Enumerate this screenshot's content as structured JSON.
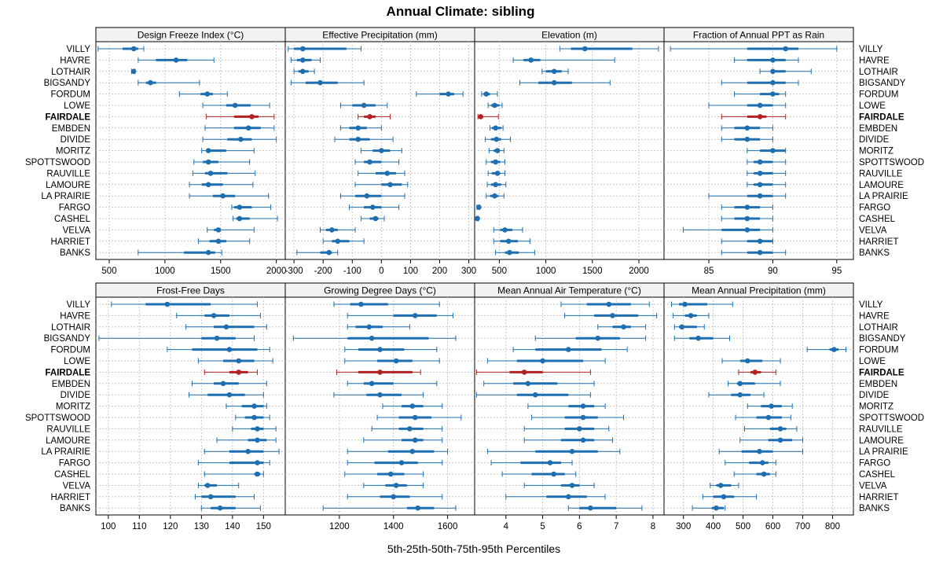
{
  "title": "Annual Climate: sibling",
  "xlabel": "5th-25th-50th-75th-95th Percentiles",
  "highlight_site": "FAIRDALE",
  "colors": {
    "normal": "#1f6fb0",
    "highlight": "#b22222",
    "strip_bg": "#f2f2f2",
    "grid": "#c8c8c8"
  },
  "sites": [
    "VILLY",
    "HAVRE",
    "LOTHAIR",
    "BIGSANDY",
    "FORDUM",
    "LOWE",
    "FAIRDALE",
    "EMBDEN",
    "DIVIDE",
    "MORITZ",
    "SPOTTSWOOD",
    "RAUVILLE",
    "LAMOURE",
    "LA PRAIRIE",
    "FARGO",
    "CASHEL",
    "VELVA",
    "HARRIET",
    "BANKS"
  ],
  "chart_data": [
    {
      "type": "percentile-dot",
      "title": "Design Freeze Index (°C)",
      "xlim": [
        380,
        2080
      ],
      "ticks": [
        500,
        1000,
        1500,
        2000
      ],
      "tick_labels": [
        "500",
        "1000",
        "1500",
        "2000"
      ],
      "series": [
        [
          400,
          620,
          720,
          760,
          810
        ],
        [
          760,
          920,
          1100,
          1200,
          1440
        ],
        [
          700,
          710,
          720,
          725,
          730
        ],
        [
          760,
          830,
          870,
          920,
          1310
        ],
        [
          1130,
          1320,
          1380,
          1430,
          1560
        ],
        [
          1340,
          1550,
          1630,
          1770,
          1940
        ],
        [
          1370,
          1620,
          1780,
          1840,
          1980
        ],
        [
          1360,
          1620,
          1750,
          1860,
          1980
        ],
        [
          1340,
          1560,
          1680,
          1780,
          2000
        ],
        [
          1330,
          1370,
          1390,
          1550,
          1800
        ],
        [
          1260,
          1340,
          1390,
          1480,
          1760
        ],
        [
          1250,
          1360,
          1410,
          1560,
          1810
        ],
        [
          1220,
          1330,
          1390,
          1520,
          1790
        ],
        [
          1220,
          1430,
          1520,
          1630,
          1930
        ],
        [
          1600,
          1620,
          1670,
          1780,
          1950
        ],
        [
          1610,
          1640,
          1670,
          1760,
          2010
        ],
        [
          1380,
          1440,
          1480,
          1500,
          1800
        ],
        [
          1300,
          1400,
          1480,
          1550,
          1760
        ],
        [
          760,
          1170,
          1390,
          1450,
          1510
        ]
      ]
    },
    {
      "type": "percentile-dot",
      "title": "Effective Precipitation (mm)",
      "xlim": [
        -330,
        320
      ],
      "ticks": [
        -300,
        -200,
        -100,
        0,
        100,
        200,
        300
      ],
      "tick_labels": [
        "-300",
        "-200",
        "-100",
        "0",
        "100",
        "200",
        "300"
      ],
      "series": [
        [
          -320,
          -300,
          -270,
          -120,
          -70
        ],
        [
          -310,
          -290,
          -270,
          -240,
          -210
        ],
        [
          -300,
          -285,
          -270,
          -250,
          -230
        ],
        [
          -310,
          -260,
          -210,
          -150,
          -60
        ],
        [
          120,
          200,
          230,
          250,
          280
        ],
        [
          -140,
          -100,
          -60,
          -20,
          20
        ],
        [
          -80,
          -60,
          -40,
          -20,
          30
        ],
        [
          -140,
          -110,
          -80,
          -50,
          0
        ],
        [
          -160,
          -110,
          -80,
          -40,
          40
        ],
        [
          -70,
          -30,
          0,
          30,
          70
        ],
        [
          -90,
          -60,
          -40,
          0,
          60
        ],
        [
          -80,
          -20,
          20,
          50,
          80
        ],
        [
          -90,
          0,
          30,
          70,
          90
        ],
        [
          -140,
          -90,
          -50,
          0,
          80
        ],
        [
          -110,
          -60,
          -30,
          0,
          60
        ],
        [
          -70,
          -40,
          -20,
          -10,
          10
        ],
        [
          -210,
          -190,
          -170,
          -150,
          -90
        ],
        [
          -200,
          -170,
          -150,
          -110,
          -60
        ],
        [
          -290,
          -210,
          -180,
          -170,
          -150
        ]
      ]
    },
    {
      "type": "percentile-dot",
      "title": "Elevation (m)",
      "xlim": [
        235,
        2270
      ],
      "ticks": [
        500,
        1000,
        1500,
        2000
      ],
      "tick_labels": [
        "500",
        "1000",
        "1500",
        "2000"
      ],
      "series": [
        [
          1150,
          1270,
          1420,
          1930,
          2210
        ],
        [
          650,
          760,
          840,
          940,
          1740
        ],
        [
          960,
          1000,
          1090,
          1170,
          1240
        ],
        [
          720,
          920,
          1090,
          1280,
          1690
        ],
        [
          310,
          330,
          360,
          400,
          480
        ],
        [
          380,
          410,
          450,
          500,
          530
        ],
        [
          270,
          280,
          300,
          320,
          490
        ],
        [
          400,
          420,
          460,
          520,
          540
        ],
        [
          350,
          410,
          470,
          520,
          620
        ],
        [
          390,
          440,
          480,
          500,
          550
        ],
        [
          360,
          410,
          460,
          510,
          560
        ],
        [
          380,
          420,
          480,
          510,
          560
        ],
        [
          370,
          410,
          460,
          520,
          570
        ],
        [
          360,
          400,
          450,
          490,
          550
        ],
        [
          260,
          270,
          280,
          285,
          290
        ],
        [
          255,
          260,
          265,
          270,
          275
        ],
        [
          440,
          510,
          560,
          640,
          750
        ],
        [
          440,
          510,
          600,
          700,
          830
        ],
        [
          460,
          560,
          610,
          710,
          880
        ]
      ]
    },
    {
      "type": "percentile-dot",
      "title": "Fraction of Annual PPT as Rain",
      "xlim": [
        81.5,
        96.3
      ],
      "ticks": [
        85,
        90,
        95
      ],
      "tick_labels": [
        "85",
        "90",
        "95"
      ],
      "series": [
        [
          82,
          88,
          91,
          92,
          95
        ],
        [
          87,
          88,
          90,
          91,
          92
        ],
        [
          89,
          90,
          90,
          91,
          93
        ],
        [
          86,
          88,
          90,
          91,
          92
        ],
        [
          87,
          89,
          90,
          90.5,
          91
        ],
        [
          85,
          88,
          89,
          90,
          91
        ],
        [
          86,
          88,
          89,
          89.5,
          91
        ],
        [
          86,
          87,
          88,
          89,
          90
        ],
        [
          86,
          87,
          88,
          89,
          90
        ],
        [
          88,
          89,
          90,
          91,
          91
        ],
        [
          88,
          88.5,
          89,
          90,
          91
        ],
        [
          88,
          88.5,
          89,
          90,
          91
        ],
        [
          88,
          88.5,
          89,
          90,
          91
        ],
        [
          85,
          88,
          89,
          90,
          91
        ],
        [
          86,
          87,
          88,
          89,
          90
        ],
        [
          86,
          87,
          88,
          89,
          90
        ],
        [
          83,
          86,
          88,
          89,
          90
        ],
        [
          86,
          88,
          89,
          90,
          90
        ],
        [
          86,
          88,
          89,
          90,
          91
        ]
      ]
    },
    {
      "type": "percentile-dot",
      "title": "Frost-Free Days",
      "xlim": [
        96,
        157
      ],
      "ticks": [
        100,
        110,
        120,
        130,
        140,
        150
      ],
      "tick_labels": [
        "100",
        "110",
        "120",
        "130",
        "140",
        "150"
      ],
      "series": [
        [
          101,
          112,
          119,
          133,
          148
        ],
        [
          122,
          131,
          134,
          139,
          149
        ],
        [
          125,
          134,
          138,
          147,
          151
        ],
        [
          97,
          130,
          135,
          141,
          147
        ],
        [
          119,
          127,
          139,
          148,
          152
        ],
        [
          129,
          137,
          142,
          147,
          153
        ],
        [
          131,
          139,
          142,
          145,
          148
        ],
        [
          127,
          134,
          137,
          142,
          151
        ],
        [
          126,
          132,
          139,
          144,
          150
        ],
        [
          138,
          143,
          147,
          150,
          151
        ],
        [
          141,
          144,
          147,
          150,
          152
        ],
        [
          140,
          146,
          148,
          150,
          154
        ],
        [
          135,
          145,
          148,
          151,
          154
        ],
        [
          131,
          139,
          145,
          150,
          155
        ],
        [
          129,
          139,
          148,
          150,
          152
        ],
        [
          131,
          147,
          148,
          149,
          150
        ],
        [
          129,
          131,
          132,
          135,
          142
        ],
        [
          128,
          130,
          133,
          141,
          147
        ],
        [
          130,
          133,
          136,
          141,
          149
        ]
      ]
    },
    {
      "type": "percentile-dot",
      "title": "Growing Degree Days (°C)",
      "xlim": [
        1000,
        1700
      ],
      "ticks": [
        1200,
        1400,
        1600
      ],
      "tick_labels": [
        "1200",
        "1400",
        "1600"
      ],
      "series": [
        [
          1180,
          1240,
          1280,
          1380,
          1570
        ],
        [
          1230,
          1400,
          1480,
          1560,
          1620
        ],
        [
          1230,
          1260,
          1310,
          1360,
          1460
        ],
        [
          1030,
          1230,
          1320,
          1530,
          1630
        ],
        [
          1220,
          1270,
          1350,
          1440,
          1560
        ],
        [
          1220,
          1340,
          1410,
          1470,
          1570
        ],
        [
          1190,
          1270,
          1350,
          1470,
          1500
        ],
        [
          1230,
          1290,
          1320,
          1400,
          1560
        ],
        [
          1180,
          1300,
          1350,
          1430,
          1510
        ],
        [
          1360,
          1430,
          1470,
          1510,
          1580
        ],
        [
          1340,
          1420,
          1480,
          1540,
          1650
        ],
        [
          1320,
          1420,
          1460,
          1510,
          1580
        ],
        [
          1290,
          1430,
          1480,
          1510,
          1580
        ],
        [
          1230,
          1380,
          1470,
          1550,
          1600
        ],
        [
          1230,
          1330,
          1430,
          1490,
          1580
        ],
        [
          1220,
          1340,
          1390,
          1440,
          1510
        ],
        [
          1290,
          1370,
          1410,
          1450,
          1510
        ],
        [
          1230,
          1350,
          1400,
          1460,
          1580
        ],
        [
          1140,
          1450,
          1490,
          1550,
          1630
        ]
      ]
    },
    {
      "type": "percentile-dot",
      "title": "Mean Annual Air Temperature (°C)",
      "xlim": [
        3.15,
        8.3
      ],
      "ticks": [
        4,
        5,
        6,
        7,
        8
      ],
      "tick_labels": [
        "4",
        "5",
        "6",
        "7",
        "8"
      ],
      "series": [
        [
          5.5,
          6.2,
          6.8,
          7.4,
          7.9
        ],
        [
          5.6,
          6.4,
          6.9,
          7.6,
          8.1
        ],
        [
          6.5,
          6.9,
          7.2,
          7.4,
          7.8
        ],
        [
          4.8,
          5.9,
          6.5,
          7.1,
          7.8
        ],
        [
          4.2,
          4.8,
          5.7,
          6.6,
          7.3
        ],
        [
          3.5,
          4.3,
          5.0,
          6.1,
          6.7
        ],
        [
          3.2,
          4.1,
          4.5,
          5.0,
          6.3
        ],
        [
          3.4,
          4.2,
          4.6,
          5.4,
          6.4
        ],
        [
          3.2,
          4.3,
          4.8,
          5.7,
          6.3
        ],
        [
          4.6,
          5.7,
          6.1,
          6.4,
          6.7
        ],
        [
          4.7,
          5.6,
          6.1,
          6.5,
          7.2
        ],
        [
          4.5,
          5.6,
          6.0,
          6.4,
          6.8
        ],
        [
          4.5,
          5.5,
          6.1,
          6.4,
          6.9
        ],
        [
          3.5,
          4.8,
          5.8,
          6.5,
          7.1
        ],
        [
          3.6,
          4.4,
          5.2,
          5.5,
          5.8
        ],
        [
          3.9,
          4.7,
          5.3,
          5.6,
          5.9
        ],
        [
          4.5,
          5.5,
          5.8,
          6.0,
          6.4
        ],
        [
          4.0,
          5.1,
          5.7,
          6.2,
          6.7
        ],
        [
          5.7,
          6.0,
          6.3,
          7.0,
          7.7
        ]
      ]
    },
    {
      "type": "percentile-dot",
      "title": "Mean Annual Precipitation (mm)",
      "xlim": [
        235,
        870
      ],
      "ticks": [
        300,
        400,
        500,
        600,
        700,
        800
      ],
      "tick_labels": [
        "300",
        "400",
        "500",
        "600",
        "700",
        "800"
      ],
      "series": [
        [
          260,
          285,
          305,
          380,
          465
        ],
        [
          265,
          305,
          325,
          345,
          385
        ],
        [
          270,
          285,
          295,
          345,
          370
        ],
        [
          270,
          320,
          350,
          400,
          455
        ],
        [
          715,
          790,
          805,
          820,
          845
        ],
        [
          430,
          490,
          515,
          565,
          625
        ],
        [
          485,
          525,
          540,
          560,
          610
        ],
        [
          450,
          480,
          490,
          540,
          625
        ],
        [
          385,
          460,
          490,
          525,
          570
        ],
        [
          515,
          560,
          595,
          630,
          665
        ],
        [
          475,
          545,
          585,
          630,
          660
        ],
        [
          505,
          590,
          625,
          645,
          680
        ],
        [
          490,
          585,
          625,
          665,
          700
        ],
        [
          420,
          495,
          555,
          600,
          700
        ],
        [
          440,
          520,
          565,
          585,
          610
        ],
        [
          470,
          545,
          570,
          590,
          610
        ],
        [
          390,
          410,
          425,
          460,
          485
        ],
        [
          365,
          400,
          435,
          470,
          545
        ],
        [
          330,
          395,
          410,
          435,
          440
        ]
      ]
    }
  ]
}
